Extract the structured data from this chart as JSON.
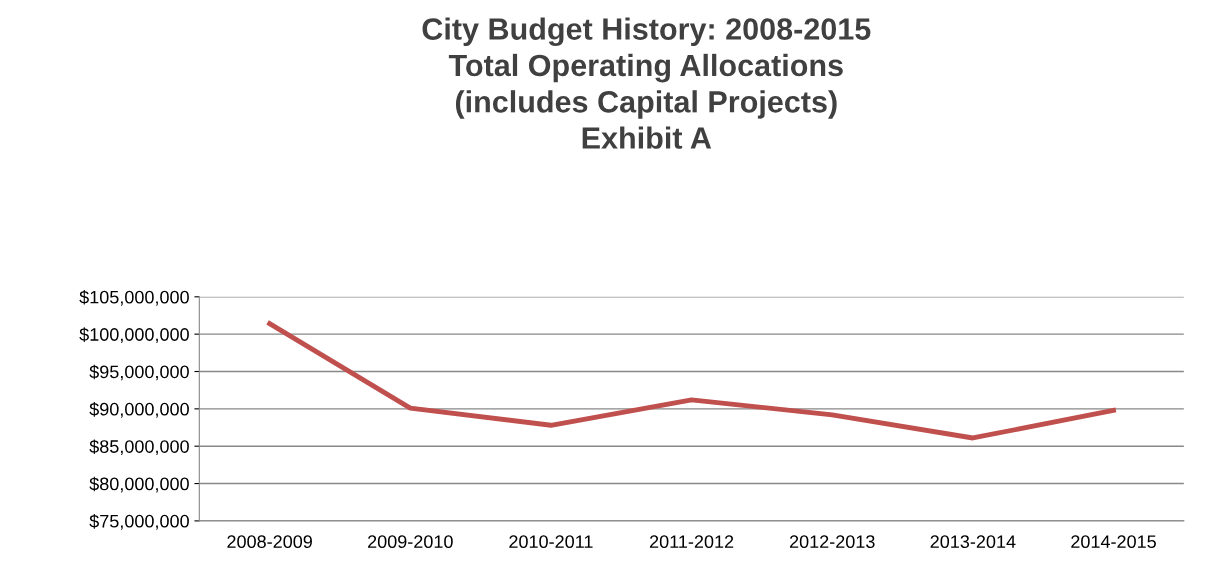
{
  "chart_data": {
    "type": "line",
    "title": "City Budget History: 2008-2015\nTotal Operating Allocations\n(includes Capital Projects)\nExhibit A",
    "categories": [
      "2008-2009",
      "2009-2010",
      "2010-2011",
      "2011-2012",
      "2012-2013",
      "2013-2014",
      "2014-2015"
    ],
    "series": [
      {
        "color": "#c0504d",
        "values": [
          101400000,
          90100000,
          87800000,
          91200000,
          89200000,
          86100000,
          89800000
        ]
      }
    ],
    "ylim": [
      75000000,
      105000000
    ],
    "yticks": [
      {
        "value": 75000000,
        "label": "$75,000,000"
      },
      {
        "value": 80000000,
        "label": "$80,000,000"
      },
      {
        "value": 85000000,
        "label": "$85,000,000"
      },
      {
        "value": 90000000,
        "label": "$90,000,000"
      },
      {
        "value": 95000000,
        "label": "$95,000,000"
      },
      {
        "value": 100000000,
        "label": "$100,000,000"
      },
      {
        "value": 105000000,
        "label": "$105,000,000"
      }
    ],
    "grid": "y",
    "marker": "none",
    "line_style": "solid"
  }
}
